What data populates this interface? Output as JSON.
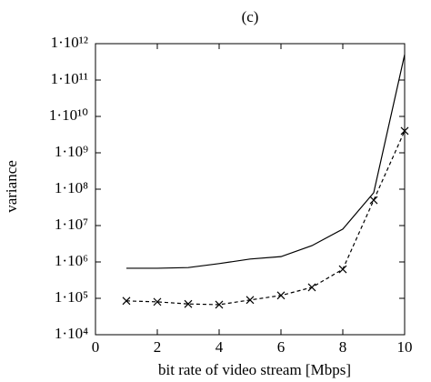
{
  "chart_data": {
    "type": "line",
    "title": "(c)",
    "x_label": "bit rate of video stream [Mbps]",
    "y_label": "variance",
    "xlim": [
      0,
      10
    ],
    "xticks": [
      0,
      2,
      4,
      6,
      8,
      10
    ],
    "ylim": [
      10000,
      1000000000000
    ],
    "y_scale": "log",
    "yticks": [
      {
        "value": 10000,
        "label": "1·10⁴"
      },
      {
        "value": 100000,
        "label": "1·10⁵"
      },
      {
        "value": 1000000,
        "label": "1·10⁶"
      },
      {
        "value": 10000000,
        "label": "1·10⁷"
      },
      {
        "value": 100000000,
        "label": "1·10⁸"
      },
      {
        "value": 1000000000,
        "label": "1·10⁹"
      },
      {
        "value": 10000000000,
        "label": "1·10¹⁰"
      },
      {
        "value": 100000000000,
        "label": "1·10¹¹"
      },
      {
        "value": 1000000000000,
        "label": "1·10¹²"
      }
    ],
    "x": [
      1,
      2,
      3,
      4,
      5,
      6,
      7,
      8,
      9,
      10
    ],
    "series": [
      {
        "color": "#000000",
        "style": "solid",
        "values": [
          670000,
          670000,
          700000,
          900000,
          1200000,
          1400000,
          2800000,
          8000000,
          80000000,
          500000000000
        ]
      },
      {
        "color": "#000000",
        "style": "dashed",
        "marker": "x",
        "values": [
          85000,
          80000,
          70000,
          67000,
          90000,
          120000,
          200000,
          630000,
          50000000,
          4000000000
        ]
      }
    ]
  }
}
